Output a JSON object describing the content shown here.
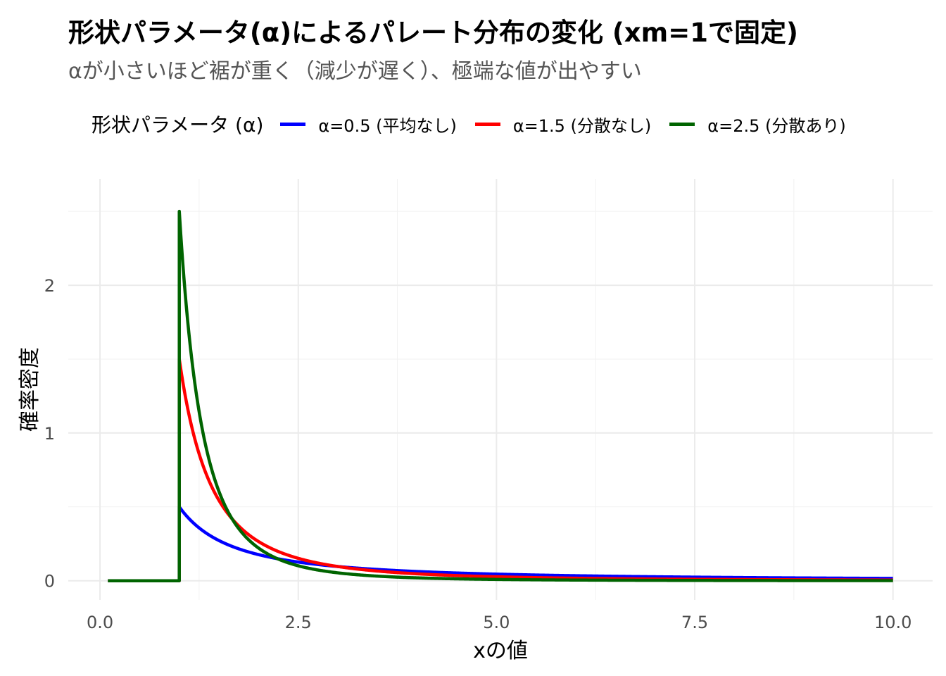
{
  "chart_data": {
    "type": "line",
    "title": "形状パラメータ(α)によるパレート分布の変化 (xm=1で固定)",
    "subtitle": "αが小さいほど裾が重く（減少が遅く）、極端な値が出やすい",
    "xlabel": "xの値",
    "ylabel": "確率密度",
    "xlim": [
      -0.4,
      10.5
    ],
    "ylim": [
      -0.13,
      2.72
    ],
    "x_ticks": [
      0.0,
      2.5,
      5.0,
      7.5,
      10.0
    ],
    "x_tick_labels": [
      "0.0",
      "2.5",
      "5.0",
      "7.5",
      "10.0"
    ],
    "y_ticks": [
      0,
      1,
      2
    ],
    "y_tick_labels": [
      "0",
      "1",
      "2"
    ],
    "grid": true,
    "legend_title": "形状パラメータ (α)",
    "legend_position": "top",
    "xm": 1,
    "x_start": 0.1,
    "x_end": 10,
    "series": [
      {
        "name": "α=0.5 (平均なし)",
        "alpha": 0.5,
        "color": "#0000ff"
      },
      {
        "name": "α=1.5 (分散なし)",
        "alpha": 1.5,
        "color": "#ff0000"
      },
      {
        "name": "α=2.5 (分散あり)",
        "alpha": 2.5,
        "color": "#006400"
      }
    ]
  }
}
